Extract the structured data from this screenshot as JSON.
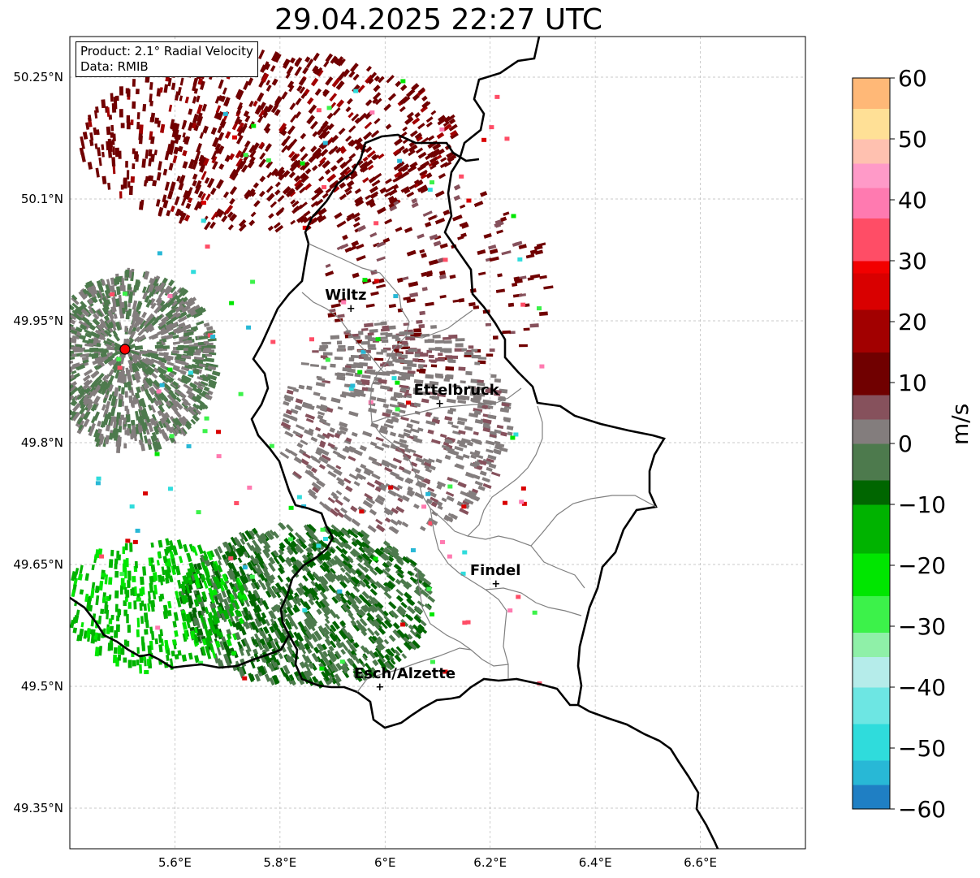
{
  "title": "29.04.2025 22:27 UTC",
  "info": {
    "product": "Product: 2.1° Radial Velocity",
    "source": "Data: RMIB"
  },
  "axes": {
    "lon_ticks": [
      {
        "value": 5.6,
        "label": "5.6°E"
      },
      {
        "value": 5.8,
        "label": "5.8°E"
      },
      {
        "value": 6.0,
        "label": "6°E"
      },
      {
        "value": 6.2,
        "label": "6.2°E"
      },
      {
        "value": 6.4,
        "label": "6.4°E"
      },
      {
        "value": 6.6,
        "label": "6.6°E"
      }
    ],
    "lat_ticks": [
      {
        "value": 50.25,
        "label": "50.25°N"
      },
      {
        "value": 50.1,
        "label": "50.1°N"
      },
      {
        "value": 49.95,
        "label": "49.95°N"
      },
      {
        "value": 49.8,
        "label": "49.8°N"
      },
      {
        "value": 49.65,
        "label": "49.65°N"
      },
      {
        "value": 49.5,
        "label": "49.5°N"
      },
      {
        "value": 49.35,
        "label": "49.35°N"
      }
    ],
    "lon_range": [
      5.4,
      6.8
    ],
    "lat_range": [
      49.3,
      50.3
    ],
    "grid": true
  },
  "cities": [
    {
      "name": "Wiltz",
      "lon": 5.935,
      "lat": 49.966
    },
    {
      "name": "Ettelbruck",
      "lon": 6.104,
      "lat": 49.849
    },
    {
      "name": "Findel",
      "lon": 6.211,
      "lat": 49.627
    },
    {
      "name": "Esch/Alzette",
      "lon": 5.99,
      "lat": 49.5
    }
  ],
  "radar_site": {
    "lon": 5.505,
    "lat": 49.915,
    "color": "#ff0000"
  },
  "colorbar": {
    "label": "m/s",
    "min": -60,
    "max": 60,
    "ticks": [
      {
        "value": 60,
        "label": "60"
      },
      {
        "value": 50,
        "label": "50"
      },
      {
        "value": 40,
        "label": "40"
      },
      {
        "value": 30,
        "label": "30"
      },
      {
        "value": 20,
        "label": "20"
      },
      {
        "value": 10,
        "label": "10"
      },
      {
        "value": 0,
        "label": "0"
      },
      {
        "value": -10,
        "label": "−10"
      },
      {
        "value": -20,
        "label": "−20"
      },
      {
        "value": -30,
        "label": "−30"
      },
      {
        "value": -40,
        "label": "−40"
      },
      {
        "value": -50,
        "label": "−50"
      },
      {
        "value": -60,
        "label": "−60"
      }
    ],
    "stops": [
      {
        "value": -60,
        "color": "#1f7fc4"
      },
      {
        "value": -56,
        "color": "#28b8d6"
      },
      {
        "value": -52,
        "color": "#2fdcdc"
      },
      {
        "value": -46,
        "color": "#6de6e3"
      },
      {
        "value": -40,
        "color": "#b5ecea"
      },
      {
        "value": -35,
        "color": "#8ff0a8"
      },
      {
        "value": -31,
        "color": "#3cf24a"
      },
      {
        "value": -25,
        "color": "#00e600"
      },
      {
        "value": -18,
        "color": "#00b300"
      },
      {
        "value": -10,
        "color": "#006600"
      },
      {
        "value": -6,
        "color": "#4d7a4d"
      },
      {
        "value": 0,
        "color": "#837d7d"
      },
      {
        "value": 4,
        "color": "#86515c"
      },
      {
        "value": 8,
        "color": "#700000"
      },
      {
        "value": 15,
        "color": "#a20000"
      },
      {
        "value": 22,
        "color": "#d90000"
      },
      {
        "value": 28,
        "color": "#f20000"
      },
      {
        "value": 30,
        "color": "#ff4d66"
      },
      {
        "value": 37,
        "color": "#ff7ab0"
      },
      {
        "value": 42,
        "color": "#ff9ac8"
      },
      {
        "value": 46,
        "color": "#ffc1b0"
      },
      {
        "value": 50,
        "color": "#ffe096"
      },
      {
        "value": 55,
        "color": "#ffb877"
      },
      {
        "value": 60,
        "color": "#ff9b55"
      }
    ]
  },
  "echo_regions": [
    {
      "name": "north-receding",
      "lon": 5.78,
      "lat": 50.17,
      "rlon": 0.36,
      "rlat": 0.11,
      "vmin": 8,
      "vmax": 16,
      "n": 750
    },
    {
      "name": "north-east-receding",
      "lon": 6.1,
      "lat": 50.0,
      "rlon": 0.22,
      "rlat": 0.12,
      "vmin": 6,
      "vmax": 14,
      "n": 180
    },
    {
      "name": "center-near-zero",
      "lon": 6.02,
      "lat": 49.82,
      "rlon": 0.22,
      "rlat": 0.13,
      "vmin": 1,
      "vmax": 5,
      "n": 650
    },
    {
      "name": "site-near-zero",
      "lon": 5.52,
      "lat": 49.9,
      "rlon": 0.16,
      "rlat": 0.11,
      "vmin": -3,
      "vmax": 3,
      "n": 1100
    },
    {
      "name": "south-approaching",
      "lon": 5.85,
      "lat": 49.6,
      "rlon": 0.24,
      "rlat": 0.1,
      "vmin": -9,
      "vmax": -2,
      "n": 1100
    },
    {
      "name": "southwest-approaching",
      "lon": 5.56,
      "lat": 49.6,
      "rlon": 0.18,
      "rlat": 0.08,
      "vmin": -20,
      "vmax": -12,
      "n": 380
    }
  ]
}
